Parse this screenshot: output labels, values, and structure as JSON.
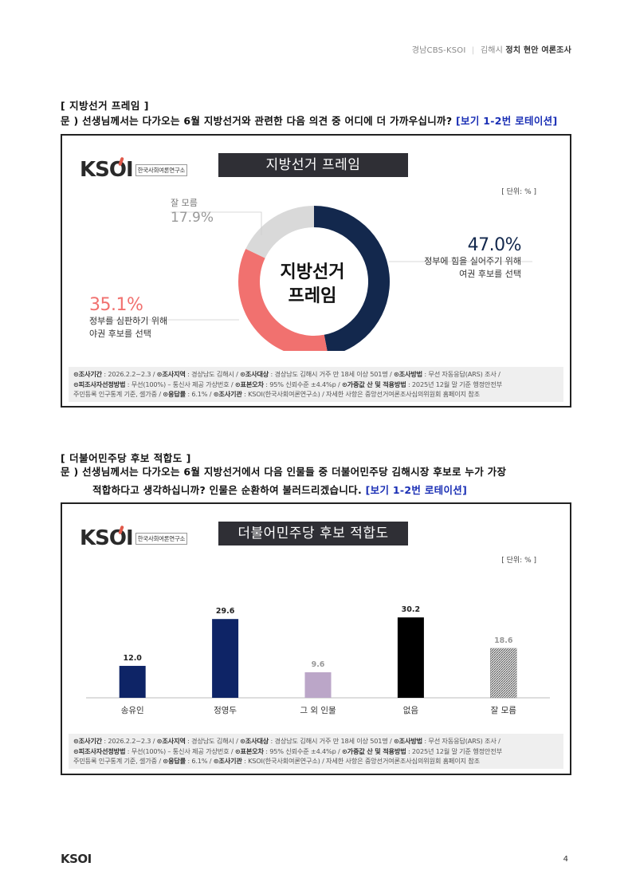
{
  "header": {
    "org": "경남CBS-KSOI",
    "sep": "|",
    "region": "김해시",
    "survey": "정치 현안 여론조사"
  },
  "section1": {
    "title": "[ 지방선거 프레임 ]",
    "question": "문 )  선생님께서는 다가오는 6월 지방선거와 관련한 다음 의견 중 어디에 더 가까우십니까?",
    "rotation": "[보기 1-2번 로테이션]"
  },
  "section2": {
    "title": "[ 더불어민주당 후보 적합도 ]",
    "question_line1": "문 )  선생님께서는 다가오는 6월 지방선거에서 다음 인물들 중 더불어민주당 김해시장 후보로 누가 가장",
    "question_line2": "적합하다고 생각하십니까? 인물은 순환하여 불러드리겠습니다.",
    "rotation": "[보기 1-2번 로테이션]"
  },
  "logo": {
    "text": "KSOI",
    "sub": "한국사회여론연구소"
  },
  "unit": "[ 단위: % ]",
  "footnote": {
    "line1_a": "⊙조사기간",
    "line1_b": " : 2026.2.2~2.3 / ",
    "line1_c": "⊙조사지역",
    "line1_d": " : 경상남도 김해시 / ",
    "line1_e": "⊙조사대상",
    "line1_f": " : 경상남도 김해시 거주 만 18세 이상 501명 / ",
    "line1_g": "⊙조사방법",
    "line1_h": " : 무선 자동응답(ARS) 조사 /",
    "line2_a": "⊙피조사자선정방법",
    "line2_b": " : 무선(100%) – 통신사 제공 가상번호 / ",
    "line2_c": "⊙표본오차",
    "line2_d": " : 95% 신뢰수준 ±4.4%p / ",
    "line2_e": "⊙가중값 산 및 적용방법",
    "line2_f": " : 2025년 12월 말 기준 행정안전부",
    "line3_a": "주민등록 인구통계 기준, 셀가중 / ",
    "line3_b": "⊙응답률",
    "line3_c": " : 6.1% / ",
    "line3_d": "⊙조사기관",
    "line3_e": " : KSOI(한국사회여론연구소) / 자세한 사항은 중앙선거여론조사심의위원회 홈페이지 참조"
  },
  "page_number": "4",
  "footer_logo": "KSOI",
  "chart_data": [
    {
      "type": "pie",
      "title": "지방선거 프레임",
      "center_label_line1": "지방선거",
      "center_label_line2": "프레임",
      "slices": [
        {
          "label_line1": "정부에 힘을 실어주기 위해",
          "label_line2": "여권 후보를 선택",
          "value": 47.0,
          "display": "47.0%",
          "color": "#13284d"
        },
        {
          "label_line1": "정부를 심판하기 위해",
          "label_line2": "야권 후보를 선택",
          "value": 35.1,
          "display": "35.1%",
          "color": "#f1716f"
        },
        {
          "label_line1": "잘 모름",
          "label_line2": "",
          "value": 17.9,
          "display": "17.9%",
          "color": "#d9d9d9"
        }
      ]
    },
    {
      "type": "bar",
      "title": "더불어민주당 후보 적합도",
      "categories": [
        "송유인",
        "정영두",
        "그 외 인물",
        "없음",
        "잘 모름"
      ],
      "values": [
        12.0,
        29.6,
        9.6,
        30.2,
        18.6
      ],
      "labels": [
        "12.0",
        "29.6",
        "9.6",
        "30.2",
        "18.6"
      ],
      "colors": [
        "#0e2466",
        "#0e2466",
        "#bba6c8",
        "#000000",
        "hatch"
      ],
      "ylim": [
        0,
        35
      ]
    }
  ]
}
